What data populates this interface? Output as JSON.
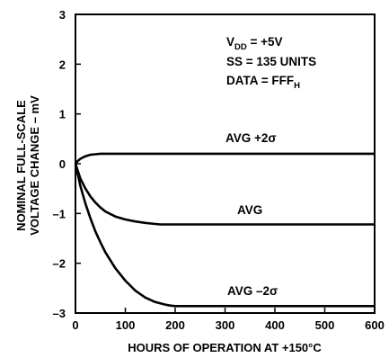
{
  "chart_data": {
    "type": "line",
    "title": "",
    "xlabel": "HOURS OF OPERATION AT +150°C",
    "ylabel_lines": [
      "NOMINAL FULL-SCALE",
      "VOLTAGE CHANGE – mV"
    ],
    "xlim": [
      0,
      600
    ],
    "ylim": [
      -3,
      3
    ],
    "x_ticks": [
      "0",
      "100",
      "200",
      "300",
      "400",
      "500",
      "600"
    ],
    "y_ticks": [
      "3",
      "2",
      "1",
      "0",
      "–1",
      "–2",
      "–3"
    ],
    "grid": false,
    "conditions": {
      "line1": {
        "main": "V",
        "sub": "DD",
        "rest": " = +5V"
      },
      "line2": "SS = 135 UNITS",
      "line3": {
        "main": "DATA = FFF",
        "sub": "H"
      }
    },
    "series": [
      {
        "name": "AVG +2σ",
        "x": [
          0,
          5,
          10,
          20,
          30,
          40,
          50,
          60,
          80,
          100,
          150,
          200,
          300,
          400,
          500,
          600
        ],
        "y": [
          0,
          0.06,
          0.1,
          0.15,
          0.18,
          0.19,
          0.2,
          0.2,
          0.2,
          0.2,
          0.2,
          0.2,
          0.2,
          0.2,
          0.2,
          0.2
        ]
      },
      {
        "name": "AVG",
        "x": [
          0,
          10,
          20,
          30,
          40,
          50,
          60,
          80,
          100,
          120,
          140,
          160,
          170,
          200,
          300,
          400,
          500,
          600
        ],
        "y": [
          0,
          -0.3,
          -0.5,
          -0.66,
          -0.78,
          -0.88,
          -0.96,
          -1.06,
          -1.12,
          -1.16,
          -1.19,
          -1.21,
          -1.22,
          -1.22,
          -1.22,
          -1.22,
          -1.22,
          -1.22
        ]
      },
      {
        "name": "AVG –2σ",
        "x": [
          0,
          10,
          20,
          30,
          40,
          50,
          60,
          80,
          100,
          120,
          140,
          160,
          180,
          190,
          200,
          300,
          400,
          500,
          600
        ],
        "y": [
          0,
          -0.45,
          -0.8,
          -1.1,
          -1.36,
          -1.58,
          -1.78,
          -2.1,
          -2.35,
          -2.55,
          -2.69,
          -2.78,
          -2.83,
          -2.85,
          -2.86,
          -2.86,
          -2.86,
          -2.86,
          -2.86
        ]
      }
    ],
    "series_labels": [
      "AVG +2σ",
      "AVG",
      "AVG –2σ"
    ]
  }
}
